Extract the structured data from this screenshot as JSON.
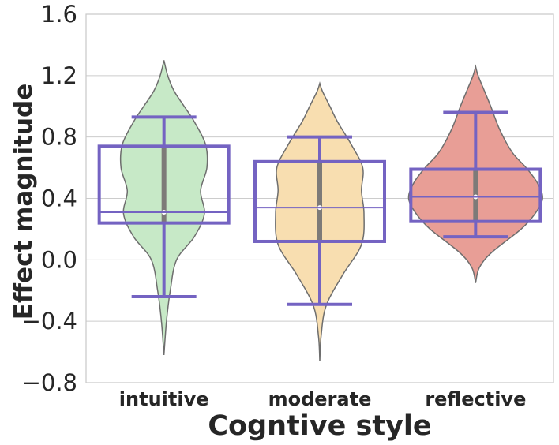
{
  "chart_data": {
    "type": "violin",
    "title": "",
    "xlabel": "Cogntive style",
    "ylabel": "Effect magnitude",
    "ylim": [
      -0.8,
      1.6
    ],
    "yticks": [
      -0.8,
      -0.4,
      0.0,
      0.4,
      0.8,
      1.2,
      1.6
    ],
    "ytick_labels": [
      "−0.8",
      "−0.4",
      "0.0",
      "0.4",
      "0.8",
      "1.2",
      "1.6"
    ],
    "grid": true,
    "categories": [
      "intuitive",
      "moderate",
      "reflective"
    ],
    "series": [
      {
        "category": "intuitive",
        "color": "#c7e9c7",
        "violin_min": -0.62,
        "violin_max": 1.3,
        "box": {
          "q1": 0.24,
          "median": 0.31,
          "q3": 0.74
        },
        "whiskers": [
          -0.24,
          0.93
        ],
        "density": [
          [
            -0.62,
            0.0
          ],
          [
            -0.4,
            0.02
          ],
          [
            -0.2,
            0.05
          ],
          [
            0.0,
            0.1
          ],
          [
            0.15,
            0.24
          ],
          [
            0.3,
            0.32
          ],
          [
            0.45,
            0.29
          ],
          [
            0.6,
            0.34
          ],
          [
            0.75,
            0.33
          ],
          [
            0.9,
            0.24
          ],
          [
            1.0,
            0.16
          ],
          [
            1.1,
            0.08
          ],
          [
            1.2,
            0.03
          ],
          [
            1.3,
            0.0
          ]
        ]
      },
      {
        "category": "moderate",
        "color": "#f8deb0",
        "violin_min": -0.66,
        "violin_max": 1.15,
        "box": {
          "q1": 0.12,
          "median": 0.34,
          "q3": 0.64
        },
        "whiskers": [
          -0.29,
          0.8
        ],
        "density": [
          [
            -0.66,
            0.0
          ],
          [
            -0.5,
            0.01
          ],
          [
            -0.3,
            0.05
          ],
          [
            -0.1,
            0.18
          ],
          [
            0.1,
            0.33
          ],
          [
            0.3,
            0.35
          ],
          [
            0.45,
            0.33
          ],
          [
            0.6,
            0.34
          ],
          [
            0.75,
            0.25
          ],
          [
            0.9,
            0.14
          ],
          [
            1.0,
            0.08
          ],
          [
            1.1,
            0.02
          ],
          [
            1.15,
            0.0
          ]
        ]
      },
      {
        "category": "reflective",
        "color": "#e89e96",
        "violin_min": -0.15,
        "violin_max": 1.26,
        "box": {
          "q1": 0.25,
          "median": 0.41,
          "q3": 0.59
        },
        "whiskers": [
          0.15,
          0.96
        ],
        "density": [
          [
            -0.15,
            0.0
          ],
          [
            -0.05,
            0.03
          ],
          [
            0.05,
            0.13
          ],
          [
            0.2,
            0.36
          ],
          [
            0.3,
            0.47
          ],
          [
            0.4,
            0.53
          ],
          [
            0.5,
            0.49
          ],
          [
            0.6,
            0.4
          ],
          [
            0.7,
            0.29
          ],
          [
            0.85,
            0.19
          ],
          [
            1.0,
            0.12
          ],
          [
            1.1,
            0.07
          ],
          [
            1.2,
            0.02
          ],
          [
            1.26,
            0.0
          ]
        ]
      }
    ],
    "colors": {
      "box": "#7463c2",
      "inner": "#7d7a78",
      "violin_edge": "#6e6e6e",
      "grid": "#cccccc",
      "frame": "#c8c8c8"
    }
  }
}
